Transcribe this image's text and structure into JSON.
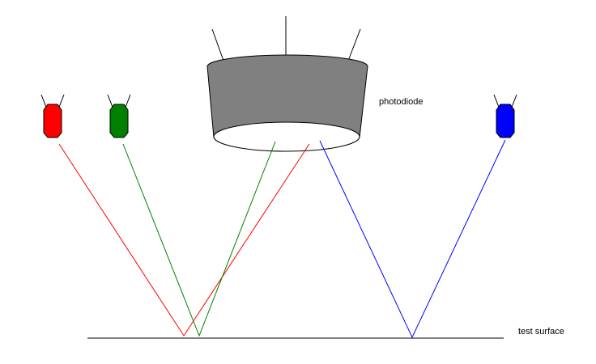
{
  "labels": {
    "photodiode": "photodiode",
    "surface": "test surface"
  },
  "colors": {
    "red": "#ff0000",
    "green": "#008000",
    "blue": "#0000ff",
    "photodiode_body": "#808080",
    "lines": "#000000",
    "background": "#ffffff"
  }
}
